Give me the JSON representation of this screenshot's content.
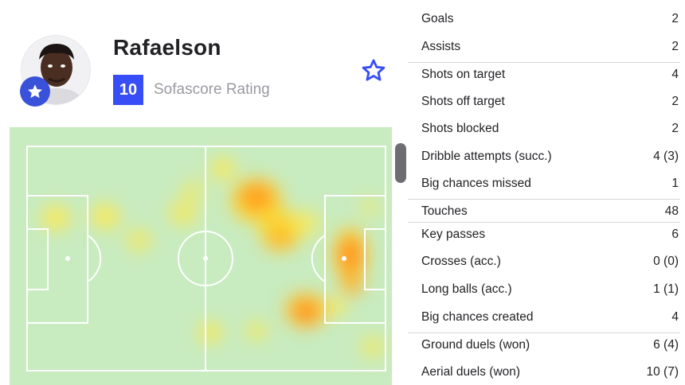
{
  "player": {
    "name": "Rafaelson",
    "rating": "10",
    "rating_label": "Sofascore Rating"
  },
  "icons": {
    "favorite": "star-outline-icon",
    "badge": "star-badge-icon"
  },
  "colors": {
    "accent": "#374df5",
    "pitch": "#c8ebc0",
    "heat_low": "#ffe94a",
    "heat_high": "#ff7a1a"
  },
  "stats": [
    {
      "label": "Goals",
      "value": "2"
    },
    {
      "label": "Assists",
      "value": "2"
    },
    {
      "label": "Shots on target",
      "value": "4"
    },
    {
      "label": "Shots off target",
      "value": "2"
    },
    {
      "label": "Shots blocked",
      "value": "2"
    },
    {
      "label": "Dribble attempts (succ.)",
      "value": "4 (3)"
    },
    {
      "label": "Big chances missed",
      "value": "1"
    },
    {
      "label": "Touches",
      "value": "48"
    },
    {
      "label": "Key passes",
      "value": "6"
    },
    {
      "label": "Crosses (acc.)",
      "value": "0 (0)"
    },
    {
      "label": "Long balls (acc.)",
      "value": "1 (1)"
    },
    {
      "label": "Big chances created",
      "value": "4"
    },
    {
      "label": "Ground duels (won)",
      "value": "6 (4)"
    },
    {
      "label": "Aerial duels (won)",
      "value": "10 (7)"
    }
  ]
}
